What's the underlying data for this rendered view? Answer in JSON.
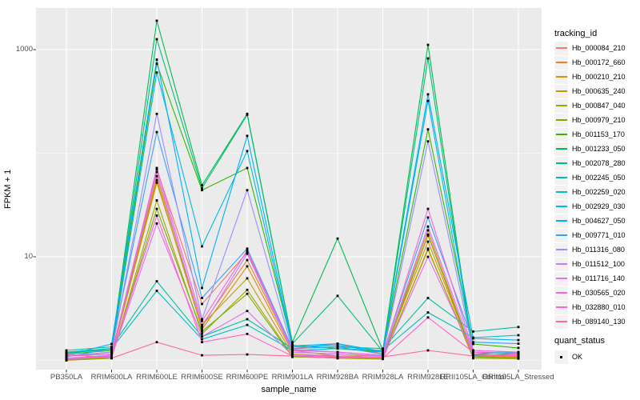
{
  "chart_data": {
    "type": "line",
    "xlabel": "sample_name",
    "ylabel": "FPKM + 1",
    "y_scale": "log10",
    "ylim": [
      0.82,
      2500
    ],
    "grid": true,
    "legend_position": "right",
    "y_ticks": [
      {
        "label": "1000",
        "value": 1000
      },
      {
        "label": "10",
        "value": 10
      }
    ],
    "y_major_breaks": [
      10,
      1000
    ],
    "y_minor_breaks": [
      1,
      100
    ],
    "categories": [
      "PB350LA",
      "RRIM600LA",
      "RRIM600LE",
      "RRIM600SE",
      "RRIM600PE",
      "RRIM901LA",
      "RRIM928BA",
      "RRIM928LA",
      "RRIM928LE",
      "RRII105LA_Control",
      "RRII105LA_Stressed"
    ],
    "series": [
      {
        "name": "Hb_000084_210",
        "color": "#F8766D",
        "values": [
          1.1,
          1.15,
          70,
          3.5,
          11,
          1.3,
          1.45,
          1.15,
          16,
          1.15,
          1.1
        ]
      },
      {
        "name": "Hb_000172_660",
        "color": "#EA8331",
        "values": [
          1.05,
          1.1,
          60,
          2.2,
          9.3,
          1.25,
          1.1,
          1.1,
          18,
          1.1,
          1.05
        ]
      },
      {
        "name": "Hb_000210_210",
        "color": "#D89000",
        "values": [
          1.1,
          1.2,
          55,
          2.0,
          8.1,
          1.2,
          1.15,
          1.1,
          14,
          1.12,
          1.08
        ]
      },
      {
        "name": "Hb_000635_240",
        "color": "#C09B00",
        "values": [
          1.05,
          1.1,
          52,
          2.2,
          6.2,
          1.15,
          1.1,
          1.05,
          11.7,
          1.1,
          1.06
        ]
      },
      {
        "name": "Hb_000847_040",
        "color": "#A3A500",
        "values": [
          1.0,
          1.05,
          35,
          1.8,
          4.8,
          1.1,
          1.05,
          1.03,
          12,
          1.05,
          1.04
        ]
      },
      {
        "name": "Hb_000979_210",
        "color": "#7CAE00",
        "values": [
          1.02,
          1.06,
          29,
          1.9,
          4.4,
          1.08,
          1.06,
          1.04,
          16.4,
          1.08,
          1.05
        ]
      },
      {
        "name": "Hb_001153_170",
        "color": "#39B600",
        "values": [
          1.15,
          1.25,
          730,
          44,
          72,
          1.4,
          1.3,
          1.2,
          170,
          1.44,
          1.32
        ]
      },
      {
        "name": "Hb_001233_050",
        "color": "#00BB4E",
        "values": [
          1.2,
          1.3,
          1900,
          49,
          240,
          1.5,
          15,
          1.25,
          1110,
          1.15,
          1.2
        ]
      },
      {
        "name": "Hb_002078_280",
        "color": "#00BF7D",
        "values": [
          1.18,
          1.28,
          1260,
          46,
          235,
          1.45,
          4.2,
          1.22,
          822,
          1.12,
          1.15
        ]
      },
      {
        "name": "Hb_002245_050",
        "color": "#00C1A3",
        "values": [
          1.25,
          1.35,
          5.8,
          1.7,
          2.5,
          1.3,
          1.35,
          1.3,
          4.0,
          1.9,
          2.1
        ]
      },
      {
        "name": "Hb_002259_020",
        "color": "#00BFC4",
        "values": [
          1.2,
          1.3,
          4.7,
          1.6,
          2.2,
          1.25,
          1.3,
          1.25,
          2.9,
          1.66,
          1.75
        ]
      },
      {
        "name": "Hb_002929_030",
        "color": "#00BAE0",
        "values": [
          1.1,
          1.2,
          600,
          12.6,
          105,
          1.35,
          1.4,
          1.2,
          320,
          1.2,
          1.18
        ]
      },
      {
        "name": "Hb_004627_050",
        "color": "#00B0F6",
        "values": [
          1.12,
          1.44,
          800,
          5.0,
          147,
          1.38,
          1.45,
          1.22,
          370,
          1.63,
          1.57
        ]
      },
      {
        "name": "Hb_009771_010",
        "color": "#35A2FF",
        "values": [
          1.08,
          1.3,
          160,
          4.0,
          12,
          1.3,
          1.35,
          1.15,
          24,
          1.5,
          1.45
        ]
      },
      {
        "name": "Hb_011316_080",
        "color": "#9590FF",
        "values": [
          1.1,
          1.2,
          240,
          2.5,
          44,
          1.28,
          1.2,
          1.12,
          130,
          1.25,
          1.2
        ]
      },
      {
        "name": "Hb_011512_100",
        "color": "#C77CFF",
        "values": [
          1.05,
          1.12,
          66,
          2.1,
          10.7,
          1.2,
          1.15,
          1.1,
          19.6,
          1.2,
          1.15
        ]
      },
      {
        "name": "Hb_011716_140",
        "color": "#E76BF3",
        "values": [
          1.03,
          1.08,
          21,
          1.7,
          3.0,
          1.12,
          1.1,
          1.06,
          10,
          1.15,
          1.1
        ]
      },
      {
        "name": "Hb_030565_020",
        "color": "#FA62DB",
        "values": [
          1.1,
          1.15,
          72,
          2.4,
          11.5,
          1.25,
          1.2,
          1.12,
          29,
          1.25,
          1.2
        ]
      },
      {
        "name": "Hb_032880_010",
        "color": "#FF61C9",
        "values": [
          1.05,
          1.1,
          25,
          1.5,
          1.8,
          1.1,
          1.08,
          1.05,
          2.6,
          1.2,
          1.15
        ]
      },
      {
        "name": "Hb_089140_130",
        "color": "#FF67A4",
        "values": [
          1.15,
          1.05,
          1.5,
          1.12,
          1.14,
          1.1,
          1.05,
          1.08,
          1.25,
          1.1,
          1.12
        ]
      }
    ],
    "legend": {
      "color_title": "tracking_id",
      "shape_title": "quant_status",
      "shape_items": [
        {
          "label": "OK"
        }
      ]
    },
    "appearance": {
      "panel_bg": "#EBEBEB",
      "gridline_color": "#FFFFFF",
      "point_color": "#000000",
      "tick_color": "#333333",
      "tick_text_color": "#4D4D4D",
      "legend_key_bg": "#F2F2F2"
    }
  }
}
